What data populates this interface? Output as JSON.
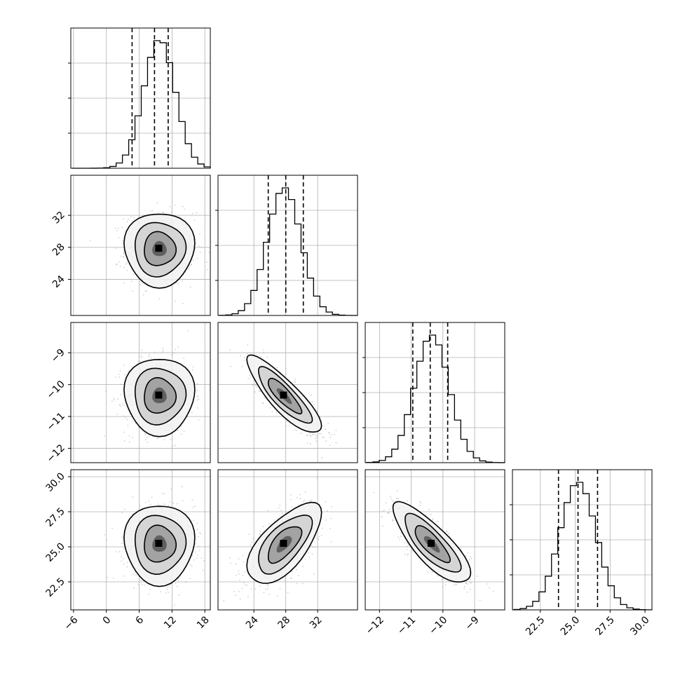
{
  "chart_data": {
    "type": "corner",
    "title": "",
    "parameters": [
      {
        "range": [
          -6.5,
          19
        ],
        "ticks": [
          -6,
          0,
          6,
          12,
          18
        ],
        "tick_labels": [
          "−6",
          "0",
          "6",
          "12",
          "18"
        ],
        "quantiles": [
          4.7,
          8.8,
          11.3
        ],
        "mode": 9.7,
        "sigma": 2.9
      },
      {
        "range": [
          19.5,
          37
        ],
        "ticks": [
          24,
          28,
          32
        ],
        "tick_labels": [
          "24",
          "28",
          "32"
        ],
        "quantiles": [
          25.8,
          28.0,
          30.2
        ],
        "mode": 27.8,
        "sigma": 2.1
      },
      {
        "range": [
          -12.45,
          -8.05
        ],
        "ticks": [
          -12,
          -11,
          -10,
          -9
        ],
        "tick_labels": [
          "−12",
          "−11",
          "−10",
          "−9"
        ],
        "quantiles": [
          -10.95,
          -10.4,
          -9.85
        ],
        "mode": -10.35,
        "sigma": 0.55
      },
      {
        "range": [
          20.5,
          30.5
        ],
        "ticks": [
          22.5,
          25.0,
          27.5,
          30.0
        ],
        "tick_labels": [
          "22.5",
          "25.0",
          "27.5",
          "30.0"
        ],
        "quantiles": [
          23.8,
          25.2,
          26.6
        ],
        "mode": 25.2,
        "sigma": 1.3
      }
    ],
    "grid": true,
    "histogram_style": "step",
    "quantile_line_style": "dashed",
    "scatter_color": "#9a9a9a",
    "contour_color": "#000000"
  }
}
